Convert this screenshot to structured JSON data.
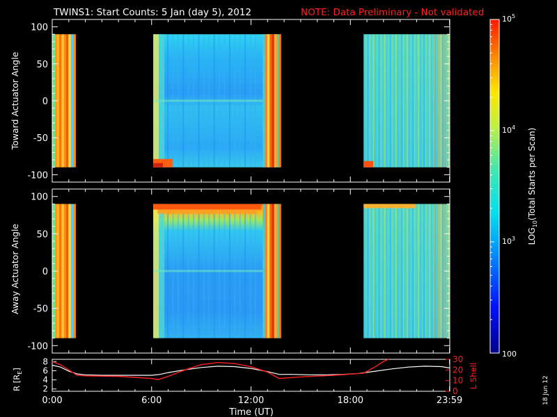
{
  "header": {
    "title": "TWINS1: Start Counts:  5 Jan (day   5), 2012",
    "note": "NOTE: Data Preliminary - Not validated"
  },
  "footer": {
    "date_stamp": "18 Jun 12"
  },
  "colors": {
    "background": "#000000",
    "axes": "#ffffff",
    "note": "#ff2020",
    "r_trace": "#ffffff",
    "lshell_trace": "#ff2020"
  },
  "chart_data": [
    {
      "type": "heatmap",
      "name": "toward",
      "ylabel": "Toward Actuator Angle",
      "ylim": [
        -110,
        110
      ],
      "yticks": [
        -100,
        -50,
        0,
        50,
        100
      ],
      "xlim": [
        0,
        24
      ],
      "y_data_range": [
        -90,
        90
      ],
      "data_intervals_hours": [
        [
          0.0,
          1.4
        ],
        [
          6.1,
          13.8
        ],
        [
          18.8,
          24.0
        ]
      ],
      "colorscale": "rainbow",
      "log_scale": true
    },
    {
      "type": "heatmap",
      "name": "away",
      "ylabel": "Away Actuator Angle",
      "ylim": [
        -110,
        110
      ],
      "yticks": [
        -100,
        -50,
        0,
        50,
        100
      ],
      "xlim": [
        0,
        24
      ],
      "y_data_range": [
        -90,
        90
      ],
      "data_intervals_hours": [
        [
          0.0,
          1.4
        ],
        [
          6.1,
          13.8
        ],
        [
          18.8,
          24.0
        ]
      ],
      "colorscale": "rainbow",
      "log_scale": true
    },
    {
      "type": "line",
      "name": "ephemeris",
      "xlabel": "Time (UT)",
      "xlim": [
        0,
        24
      ],
      "xticks": [
        "0:00",
        "6:00",
        "12:00",
        "18:00",
        "23:59"
      ],
      "xtick_hours": [
        0,
        6,
        12,
        18,
        23.983
      ],
      "ylabel_left": "R [R",
      "ylabel_left_sub": "E",
      "ylabel_left_close": "]",
      "ylabel_right": "L Shell",
      "left_yticks": [
        "2",
        "4",
        "6",
        "8"
      ],
      "left_ytick_values": [
        2,
        4,
        6,
        8
      ],
      "left_ylim": [
        1.5,
        8.5
      ],
      "right_yticks": [
        "0",
        "10",
        "20",
        "30"
      ],
      "right_ytick_values": [
        0,
        10,
        20,
        30
      ],
      "right_ylim": [
        0,
        30
      ],
      "series": [
        {
          "name": "R",
          "x": [
            0,
            0.5,
            1.0,
            1.5,
            2.0,
            3.0,
            4.0,
            5.0,
            6.0,
            6.5,
            7.0,
            8.0,
            9.0,
            10.0,
            11.0,
            12.0,
            13.0,
            13.7,
            14.5,
            15.5,
            16.5,
            17.5,
            18.5,
            19.5,
            20.5,
            21.5,
            22.5,
            23.5,
            24.0
          ],
          "values": [
            7.2,
            6.8,
            5.9,
            5.3,
            5.1,
            5.0,
            5.0,
            5.0,
            5.0,
            5.2,
            5.6,
            6.2,
            6.7,
            7.0,
            6.9,
            6.5,
            5.8,
            5.2,
            5.2,
            5.1,
            5.1,
            5.2,
            5.4,
            5.9,
            6.4,
            6.8,
            7.0,
            6.9,
            6.6
          ]
        },
        {
          "name": "L Shell",
          "x": [
            0,
            0.5,
            1.0,
            1.5,
            2.0,
            4.0,
            6.0,
            6.4,
            7.0,
            8.0,
            9.0,
            10.0,
            11.0,
            12.0,
            13.0,
            13.7,
            15.0,
            17.0,
            18.8,
            19.5,
            20.0,
            20.3
          ],
          "values": [
            28,
            25,
            20,
            15,
            14.5,
            14,
            12,
            11,
            14,
            20,
            25,
            27,
            26,
            23,
            18,
            12,
            13.5,
            15,
            17,
            23,
            28,
            30
          ]
        }
      ]
    }
  ],
  "colorbar": {
    "label_parts": [
      "LOG",
      "10",
      "(Total Starts per Scan)"
    ],
    "ticks": [
      {
        "value": 100,
        "base": "100",
        "exp": ""
      },
      {
        "value": 1000,
        "base": "10",
        "exp": "3"
      },
      {
        "value": 10000,
        "base": "10",
        "exp": "4"
      },
      {
        "value": 100000,
        "base": "10",
        "exp": "5"
      }
    ],
    "range": [
      100,
      100000
    ]
  }
}
